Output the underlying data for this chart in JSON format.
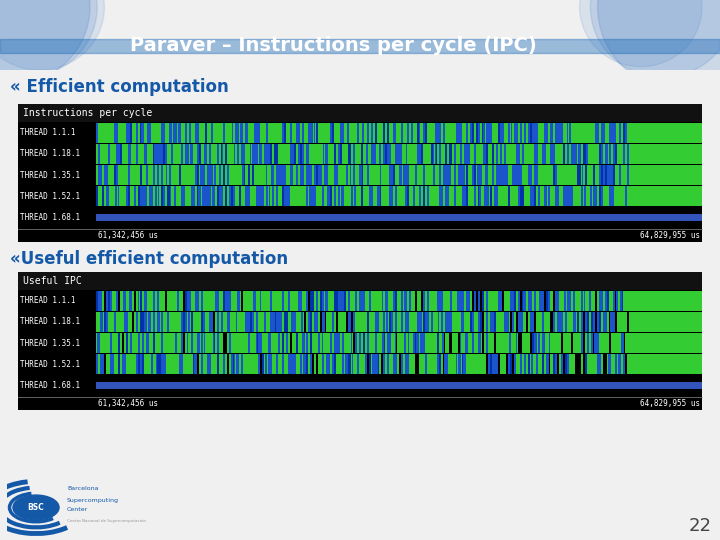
{
  "title": "Paraver – Instructions per cycle (IPC)",
  "title_bg": "#1458a8",
  "title_color": "#ffffff",
  "bg_color": "#f0f0f0",
  "bullet1": "« Efficient computation",
  "bullet2": "«Useful efficient computation",
  "bullet_color": "#1458a8",
  "chart1_title": "Instructions per cycle",
  "chart2_title": "Useful IPC",
  "threads": [
    "THREAD 1.1.1",
    "THREAD 1.18.1",
    "THREAD 1.35.1",
    "THREAD 1.52.1",
    "THREAD 1.68.1"
  ],
  "time_left": "61,342,456 us",
  "time_right": "64,829,955 us",
  "page_number": "22",
  "green_color": "#33cc33",
  "blue_color": "#1a55cc",
  "darkblue_color": "#0033aa",
  "black_color": "#000000"
}
